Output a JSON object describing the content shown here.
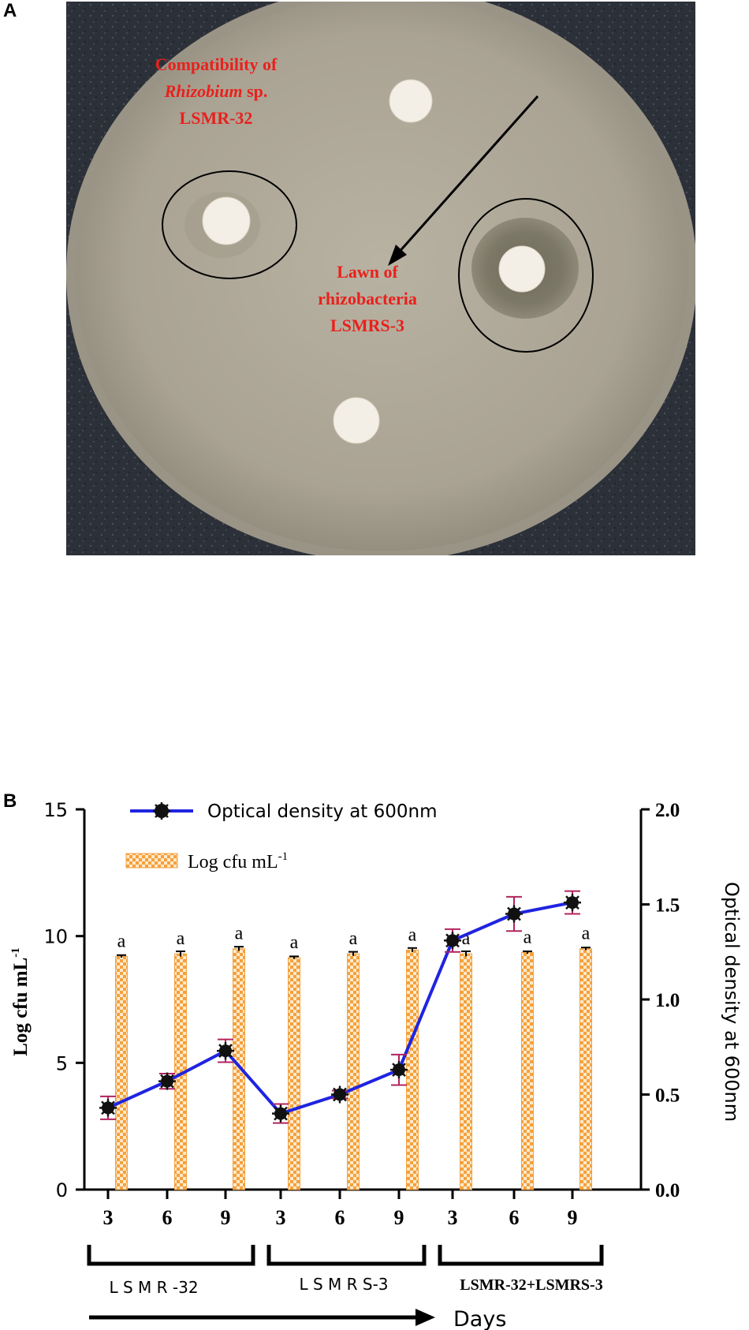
{
  "panel_a": {
    "label": "A",
    "annotation_compat_line1": "Compatibility of",
    "annotation_compat_italic": "Rhizobium",
    "annotation_compat_sp": " sp.",
    "annotation_compat_line3": "LSMR-32",
    "annotation_lawn_line1": "Lawn of",
    "annotation_lawn_line2": "rhizobacteria",
    "annotation_lawn_line3": "LSMRS-3",
    "colors": {
      "annotation": "#e8211c",
      "agar": "#b3ad9d",
      "background": "#2c3038",
      "disc": "#f4efe6"
    }
  },
  "panel_b": {
    "label": "B",
    "legend_line": "Optical density at 600nm",
    "legend_bar_prefix": "Log cfu mL",
    "legend_bar_sup": "-1",
    "group_labels": [
      "L S M R -32",
      "L S M R S-3",
      "LSMR-32+LSMRS-3"
    ],
    "days_label": "Days",
    "colors": {
      "line": "#1f24e0",
      "bar_fill": "#f4a13c",
      "bar_bg": "#fde9cc",
      "error_bar": "#b0245e",
      "marker": "#111111"
    }
  },
  "chart_data": {
    "type": "bar",
    "title": "",
    "xlabel": "",
    "ylabel": "Log cfu mL-1",
    "ylabel_right": "Optical density at 600nm",
    "categories": [
      "3",
      "6",
      "9",
      "3",
      "6",
      "9",
      "3",
      "6",
      "9"
    ],
    "ylim": [
      0,
      15
    ],
    "ylim_right": [
      0,
      2.0
    ],
    "yticks": [
      "0",
      "5",
      "10",
      "15"
    ],
    "yticks_right": [
      "0.0",
      "0.5",
      "1.0",
      "1.5",
      "2.0"
    ],
    "grid": false,
    "legend_position": "top-left",
    "series": [
      {
        "name": "Log cfu mL-1",
        "type": "bar",
        "axis": "left",
        "values": [
          9.2,
          9.3,
          9.5,
          9.15,
          9.3,
          9.45,
          9.3,
          9.35,
          9.5
        ],
        "errors": [
          0.05,
          0.1,
          0.08,
          0.05,
          0.08,
          0.08,
          0.1,
          0.05,
          0.05
        ],
        "significance": [
          "a",
          "a",
          "a",
          "a",
          "a",
          "a",
          "a",
          "a",
          "a"
        ]
      },
      {
        "name": "Optical density at 600nm",
        "type": "line",
        "axis": "right",
        "values": [
          0.43,
          0.57,
          0.73,
          0.4,
          0.5,
          0.63,
          1.31,
          1.45,
          1.51
        ],
        "errors": [
          0.06,
          0.04,
          0.06,
          0.05,
          0.02,
          0.08,
          0.06,
          0.09,
          0.06
        ]
      }
    ]
  }
}
